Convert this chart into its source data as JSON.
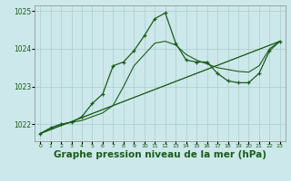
{
  "background_color": "#cce8ea",
  "grid_color": "#aacccc",
  "line_color": "#1a5c1a",
  "xlabel": "Graphe pression niveau de la mer (hPa)",
  "xlabel_fontsize": 7.5,
  "ylim": [
    1021.55,
    1025.15
  ],
  "xlim": [
    -0.5,
    23.5
  ],
  "yticks": [
    1022,
    1023,
    1024,
    1025
  ],
  "xticks": [
    0,
    1,
    2,
    3,
    4,
    5,
    6,
    7,
    8,
    9,
    10,
    11,
    12,
    13,
    14,
    15,
    16,
    17,
    18,
    19,
    20,
    21,
    22,
    23
  ],
  "series_main_x": [
    0,
    1,
    2,
    3,
    4,
    5,
    6,
    7,
    8,
    9,
    10,
    11,
    12,
    13,
    14,
    15,
    16,
    17,
    18,
    19,
    20,
    21,
    22,
    23
  ],
  "series_main_y": [
    1021.75,
    1021.9,
    1022.0,
    1022.05,
    1022.2,
    1022.55,
    1022.8,
    1023.55,
    1023.65,
    1023.95,
    1024.35,
    1024.8,
    1024.95,
    1024.15,
    1023.7,
    1023.65,
    1023.65,
    1023.35,
    1023.15,
    1023.1,
    1023.1,
    1023.35,
    1023.95,
    1024.2
  ],
  "series2_x": [
    0,
    1,
    2,
    3,
    4,
    5,
    6,
    7,
    8,
    9,
    10,
    11,
    12,
    13,
    14,
    15,
    16,
    17,
    18,
    19,
    20,
    21,
    22,
    23
  ],
  "series2_y": [
    1021.75,
    1021.9,
    1022.0,
    1022.05,
    1022.1,
    1022.2,
    1022.3,
    1022.5,
    1023.0,
    1023.55,
    1023.85,
    1024.15,
    1024.2,
    1024.1,
    1023.85,
    1023.7,
    1023.6,
    1023.5,
    1023.45,
    1023.4,
    1023.38,
    1023.55,
    1024.0,
    1024.2
  ],
  "series3_x": [
    0,
    23
  ],
  "series3_y": [
    1021.75,
    1024.2
  ],
  "series4_x": [
    0,
    23
  ],
  "series4_y": [
    1021.75,
    1024.2
  ],
  "series5_x": [
    0,
    23
  ],
  "series5_y": [
    1021.75,
    1024.2
  ]
}
